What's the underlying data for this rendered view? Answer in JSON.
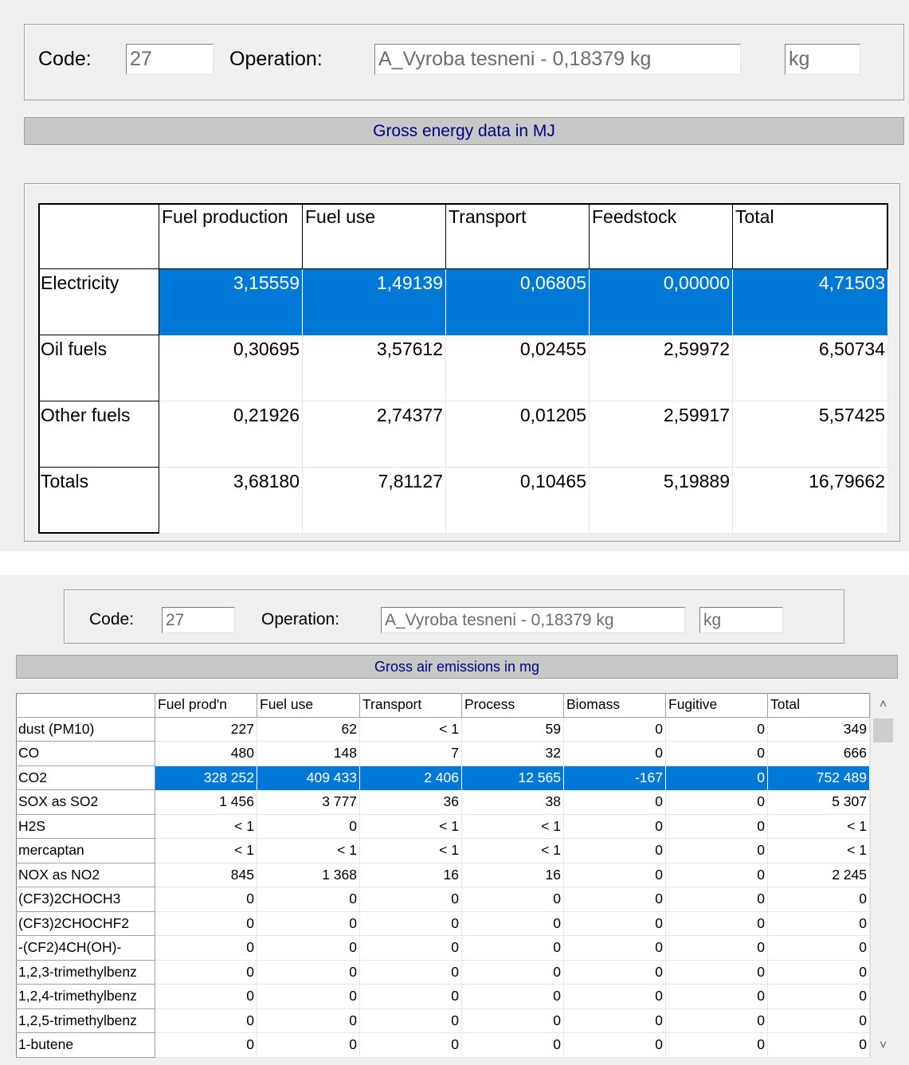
{
  "energy": {
    "code_label": "Code:",
    "code": "27",
    "operation_label": "Operation:",
    "operation": "A_Vyroba tesneni - 0,18379 kg",
    "unit": "kg",
    "banner": "Gross energy data in MJ",
    "table": {
      "headers": [
        "Fuel production",
        "Fuel use",
        "Transport",
        "Feedstock",
        "Total"
      ],
      "rows": [
        {
          "label": "Electricity",
          "cells": [
            "3,15559",
            "1,49139",
            "0,06805",
            "0,00000",
            "4,71503"
          ]
        },
        {
          "label": "Oil fuels",
          "cells": [
            "0,30695",
            "3,57612",
            "0,02455",
            "2,59972",
            "6,50734"
          ]
        },
        {
          "label": "Other fuels",
          "cells": [
            "0,21926",
            "2,74377",
            "0,01205",
            "2,59917",
            "5,57425"
          ]
        },
        {
          "label": "Totals",
          "cells": [
            "3,68180",
            "7,81127",
            "0,10465",
            "5,19889",
            "16,79662"
          ]
        }
      ]
    }
  },
  "emissions": {
    "code_label": "Code:",
    "code": "27",
    "operation_label": "Operation:",
    "operation": "A_Vyroba tesneni - 0,18379 kg",
    "unit": "kg",
    "banner": "Gross air emissions in mg",
    "table": {
      "headers": [
        "Fuel prod'n",
        "Fuel use",
        "Transport",
        "Process",
        "Biomass",
        "Fugitive",
        "Total"
      ],
      "rows": [
        {
          "label": "dust (PM10)",
          "cells": [
            "227",
            "62",
            "< 1",
            "59",
            "0",
            "0",
            "349"
          ]
        },
        {
          "label": "CO",
          "cells": [
            "480",
            "148",
            "7",
            "32",
            "0",
            "0",
            "666"
          ]
        },
        {
          "label": "CO2",
          "cells": [
            "328 252",
            "409 433",
            "2 406",
            "12 565",
            "-167",
            "0",
            "752 489"
          ]
        },
        {
          "label": "SOX as SO2",
          "cells": [
            "1 456",
            "3 777",
            "36",
            "38",
            "0",
            "0",
            "5 307"
          ]
        },
        {
          "label": "H2S",
          "cells": [
            "< 1",
            "0",
            "< 1",
            "< 1",
            "0",
            "0",
            "< 1"
          ]
        },
        {
          "label": "mercaptan",
          "cells": [
            "< 1",
            "< 1",
            "< 1",
            "< 1",
            "0",
            "0",
            "< 1"
          ]
        },
        {
          "label": "NOX as NO2",
          "cells": [
            "845",
            "1 368",
            "16",
            "16",
            "0",
            "0",
            "2 245"
          ]
        },
        {
          "label": "(CF3)2CHOCH3",
          "cells": [
            "0",
            "0",
            "0",
            "0",
            "0",
            "0",
            "0"
          ]
        },
        {
          "label": "(CF3)2CHOCHF2",
          "cells": [
            "0",
            "0",
            "0",
            "0",
            "0",
            "0",
            "0"
          ]
        },
        {
          "label": "-(CF2)4CH(OH)-",
          "cells": [
            "0",
            "0",
            "0",
            "0",
            "0",
            "0",
            "0"
          ]
        },
        {
          "label": "1,2,3-trimethylbenz",
          "cells": [
            "0",
            "0",
            "0",
            "0",
            "0",
            "0",
            "0"
          ]
        },
        {
          "label": "1,2,4-trimethylbenz",
          "cells": [
            "0",
            "0",
            "0",
            "0",
            "0",
            "0",
            "0"
          ]
        },
        {
          "label": "1,2,5-trimethylbenz",
          "cells": [
            "0",
            "0",
            "0",
            "0",
            "0",
            "0",
            "0"
          ]
        },
        {
          "label": "1-butene",
          "cells": [
            "0",
            "0",
            "0",
            "0",
            "0",
            "0",
            "0"
          ]
        }
      ]
    }
  }
}
